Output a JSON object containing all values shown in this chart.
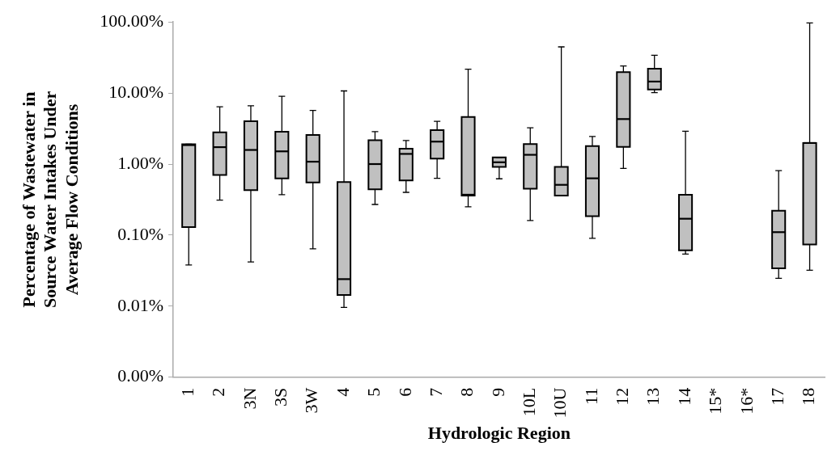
{
  "chart_data": {
    "type": "box",
    "xlabel": "Hydrologic Region",
    "ylabel": "Percentage of Wastewater in Source Water Intakes Under Average Flow Conditions",
    "categories": [
      "1",
      "2",
      "3N",
      "3S",
      "3W",
      "4",
      "5",
      "6",
      "7",
      "8",
      "9",
      "10L",
      "10U",
      "11",
      "12",
      "13",
      "14",
      "15*",
      "16*",
      "17",
      "18"
    ],
    "color": "#c0c0c0",
    "log": true,
    "grid": false,
    "legend": false,
    "ylim": [
      0.001,
      100
    ],
    "yticks": [
      {
        "value": 0.001,
        "label": "0.00%"
      },
      {
        "value": 0.01,
        "label": "0.01%"
      },
      {
        "value": 0.1,
        "label": "0.10%"
      },
      {
        "value": 1,
        "label": "1.00%"
      },
      {
        "value": 10,
        "label": "10.00%"
      },
      {
        "value": 100,
        "label": "100.00%"
      }
    ],
    "boxes": [
      {
        "low": 0.038,
        "q1": 0.13,
        "median": 1.85,
        "q3": 1.9,
        "high": 1.9
      },
      {
        "low": 0.31,
        "q1": 0.7,
        "median": 1.73,
        "q3": 2.8,
        "high": 6.4
      },
      {
        "low": 0.042,
        "q1": 0.43,
        "median": 1.58,
        "q3": 4.0,
        "high": 6.6
      },
      {
        "low": 0.37,
        "q1": 0.63,
        "median": 1.51,
        "q3": 2.86,
        "high": 9.0
      },
      {
        "low": 0.064,
        "q1": 0.55,
        "median": 1.08,
        "q3": 2.57,
        "high": 5.7
      },
      {
        "low": 0.0096,
        "q1": 0.0144,
        "median": 0.024,
        "q3": 0.56,
        "high": 10.7
      },
      {
        "low": 0.27,
        "q1": 0.44,
        "median": 1.0,
        "q3": 2.16,
        "high": 2.86
      },
      {
        "low": 0.4,
        "q1": 0.59,
        "median": 1.39,
        "q3": 1.65,
        "high": 2.14
      },
      {
        "low": 0.63,
        "q1": 1.19,
        "median": 2.07,
        "q3": 3.0,
        "high": 4.0
      },
      {
        "low": 0.25,
        "q1": 0.36,
        "median": 0.37,
        "q3": 4.6,
        "high": 21.7
      },
      {
        "low": 0.62,
        "q1": 0.91,
        "median": 1.06,
        "q3": 1.24,
        "high": 1.24
      },
      {
        "low": 0.16,
        "q1": 0.45,
        "median": 1.35,
        "q3": 1.91,
        "high": 3.24
      },
      {
        "low": 0.36,
        "q1": 0.36,
        "median": 0.51,
        "q3": 0.91,
        "high": 44.6
      },
      {
        "low": 0.09,
        "q1": 0.185,
        "median": 0.63,
        "q3": 1.79,
        "high": 2.45
      },
      {
        "low": 0.87,
        "q1": 1.75,
        "median": 4.3,
        "q3": 19.7,
        "high": 24
      },
      {
        "low": 10.1,
        "q1": 11.2,
        "median": 14.5,
        "q3": 22,
        "high": 34
      },
      {
        "low": 0.054,
        "q1": 0.061,
        "median": 0.17,
        "q3": 0.37,
        "high": 2.9
      },
      null,
      null,
      {
        "low": 0.0246,
        "q1": 0.034,
        "median": 0.11,
        "q3": 0.22,
        "high": 0.81
      },
      {
        "low": 0.032,
        "q1": 0.074,
        "median": 1.98,
        "q3": 1.98,
        "high": 97
      }
    ]
  }
}
